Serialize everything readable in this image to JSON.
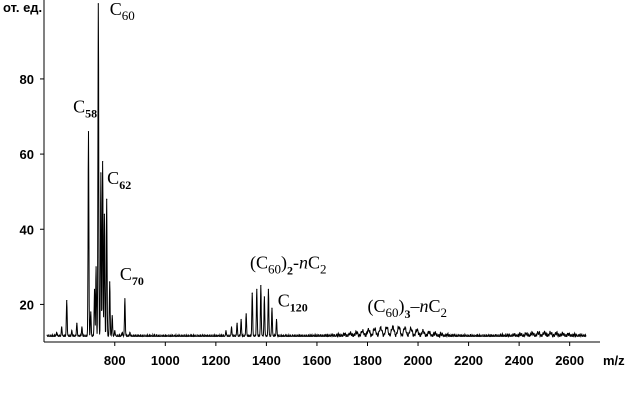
{
  "chart_data": {
    "type": "line",
    "title": "",
    "xlabel": "m/z",
    "ylabel": "от. ед.",
    "xlim": [
      520,
      2720
    ],
    "ylim": [
      10,
      101
    ],
    "x_ticks": [
      800,
      1000,
      1200,
      1400,
      1600,
      1800,
      2000,
      2200,
      2400,
      2600
    ],
    "y_ticks": [
      20,
      40,
      60,
      80
    ],
    "grid": false,
    "peaks": [
      {
        "x": 570,
        "y": 12.5
      },
      {
        "x": 590,
        "y": 14
      },
      {
        "x": 610,
        "y": 21
      },
      {
        "x": 630,
        "y": 13
      },
      {
        "x": 650,
        "y": 15
      },
      {
        "x": 670,
        "y": 14
      },
      {
        "x": 696,
        "y": 66
      },
      {
        "x": 705,
        "y": 18
      },
      {
        "x": 720,
        "y": 24
      },
      {
        "x": 726,
        "y": 30
      },
      {
        "x": 735,
        "y": 100
      },
      {
        "x": 745,
        "y": 55
      },
      {
        "x": 752,
        "y": 58
      },
      {
        "x": 759,
        "y": 44
      },
      {
        "x": 768,
        "y": 48
      },
      {
        "x": 780,
        "y": 26
      },
      {
        "x": 790,
        "y": 17
      },
      {
        "x": 800,
        "y": 13
      },
      {
        "x": 830,
        "y": 12.5
      },
      {
        "x": 840,
        "y": 21.5
      },
      {
        "x": 860,
        "y": 12.5
      },
      {
        "x": 1240,
        "y": 13
      },
      {
        "x": 1262,
        "y": 14
      },
      {
        "x": 1284,
        "y": 15
      },
      {
        "x": 1300,
        "y": 16
      },
      {
        "x": 1320,
        "y": 17.5
      },
      {
        "x": 1344,
        "y": 23
      },
      {
        "x": 1362,
        "y": 24
      },
      {
        "x": 1378,
        "y": 25
      },
      {
        "x": 1392,
        "y": 22
      },
      {
        "x": 1408,
        "y": 24
      },
      {
        "x": 1422,
        "y": 19
      },
      {
        "x": 1440,
        "y": 16
      }
    ],
    "humps": [
      {
        "center": 1900,
        "height": 2.5,
        "width": 160,
        "spacing": 24
      },
      {
        "center": 2500,
        "height": 1.0,
        "width": 130,
        "spacing": 24
      }
    ],
    "baseline": 11.5,
    "annotations": [
      {
        "base": "C",
        "sub": "60",
        "sub_bold": false,
        "x": 780,
        "y": 97
      },
      {
        "base": "C",
        "sub": "58",
        "sub_bold": true,
        "x": 635,
        "y": 71
      },
      {
        "base": "C",
        "sub": "62",
        "sub_bold": true,
        "x": 770,
        "y": 52
      },
      {
        "base": "C",
        "sub": "70",
        "sub_bold": true,
        "x": 820,
        "y": 26.5
      },
      {
        "base": "C",
        "sub": "120",
        "sub_bold": true,
        "x": 1445,
        "y": 19.5
      },
      {
        "prefix": "(C",
        "sub": "60",
        "mid": ")",
        "sub2": "2",
        "suffix_sep": "-",
        "n": "n",
        "tail": "C",
        "tail_sub": "2",
        "x": 1335,
        "y": 29.5
      },
      {
        "prefix": "(C",
        "sub": "60",
        "mid": ")",
        "sub2": "3",
        "suffix_sep": "–",
        "n": "n",
        "tail": "C",
        "tail_sub": "2",
        "x": 1800,
        "y": 18
      }
    ]
  },
  "colors": {
    "line": "#000000",
    "background": "#ffffff"
  }
}
